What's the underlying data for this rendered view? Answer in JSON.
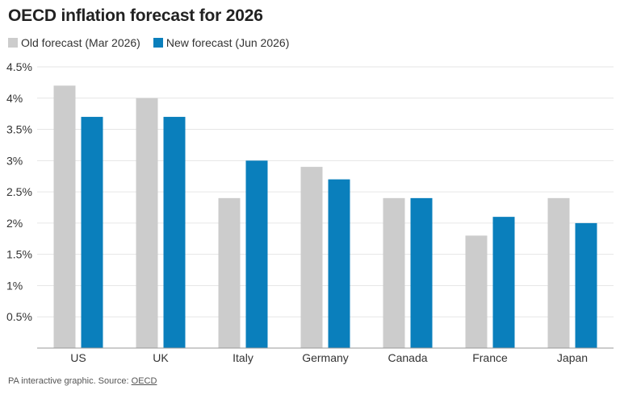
{
  "footer": {
    "prefix": "PA interactive graphic. Source: ",
    "source_link": "OECD"
  },
  "colors": {
    "old": "#cccccc",
    "new": "#0a7fbc",
    "grid": "#e6e6e6",
    "axis": "#999999"
  },
  "chart_data": {
    "type": "bar",
    "title": "OECD inflation forecast for 2026",
    "xlabel": "",
    "ylabel": "",
    "categories": [
      "US",
      "UK",
      "Italy",
      "Germany",
      "Canada",
      "France",
      "Japan"
    ],
    "series": [
      {
        "name": "Old forecast (Mar 2026)",
        "values": [
          4.2,
          4.0,
          2.4,
          2.9,
          2.4,
          1.8,
          2.4
        ]
      },
      {
        "name": "New forecast (Jun 2026)",
        "values": [
          3.7,
          3.7,
          3.0,
          2.7,
          2.4,
          2.1,
          2.0
        ]
      }
    ],
    "ylim": [
      0,
      4.5
    ],
    "yticks": [
      0.5,
      1,
      1.5,
      2,
      2.5,
      3,
      3.5,
      4,
      4.5
    ],
    "ytick_labels": [
      "0.5%",
      "1%",
      "1.5%",
      "2%",
      "2.5%",
      "3%",
      "3.5%",
      "4%",
      "4.5%"
    ],
    "grid": true,
    "legend": "top-left"
  }
}
